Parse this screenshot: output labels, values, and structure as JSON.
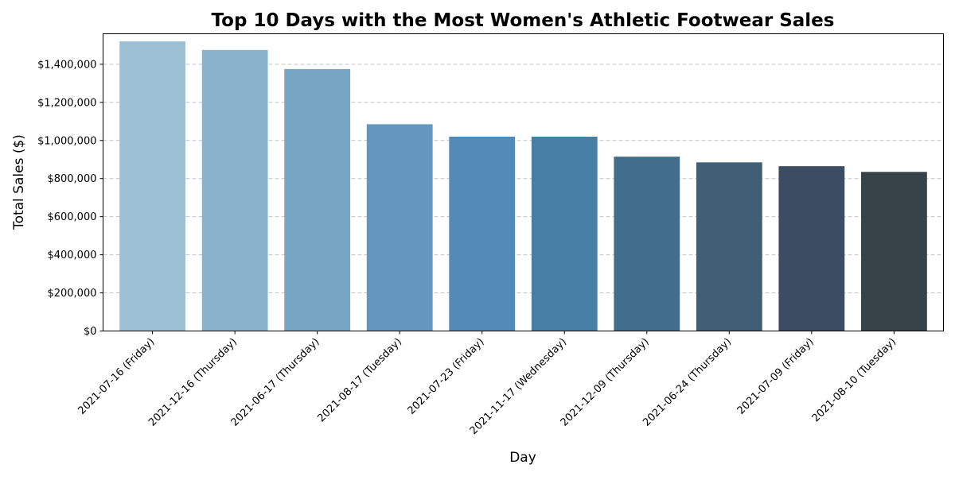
{
  "chart_data": {
    "type": "bar",
    "title": "Top 10 Days with the Most Women's Athletic Footwear Sales",
    "xlabel": "Day",
    "ylabel": "Total Sales ($)",
    "ylim": [
      0,
      1560000
    ],
    "yticks": [
      0,
      200000,
      400000,
      600000,
      800000,
      1000000,
      1200000,
      1400000
    ],
    "ytick_labels": [
      "$0",
      "$200,000",
      "$400,000",
      "$600,000",
      "$800,000",
      "$1,000,000",
      "$1,200,000",
      "$1,400,000"
    ],
    "grid": "y-dashed",
    "categories": [
      "2021-07-16 (Friday)",
      "2021-12-16 (Thursday)",
      "2021-06-17 (Thursday)",
      "2021-08-17 (Tuesday)",
      "2021-07-23 (Friday)",
      "2021-11-17 (Wednesday)",
      "2021-12-09 (Thursday)",
      "2021-06-24 (Thursday)",
      "2021-07-09 (Friday)",
      "2021-08-10 (Tuesday)"
    ],
    "values": [
      1520000,
      1475000,
      1375000,
      1085000,
      1020000,
      1020000,
      915000,
      885000,
      865000,
      835000
    ],
    "colors": [
      "#9dbfd4",
      "#8ab2cb",
      "#77a5c4",
      "#6397be",
      "#528bb5",
      "#467ea6",
      "#426d8c",
      "#405e76",
      "#3a4d62",
      "#374249"
    ]
  }
}
